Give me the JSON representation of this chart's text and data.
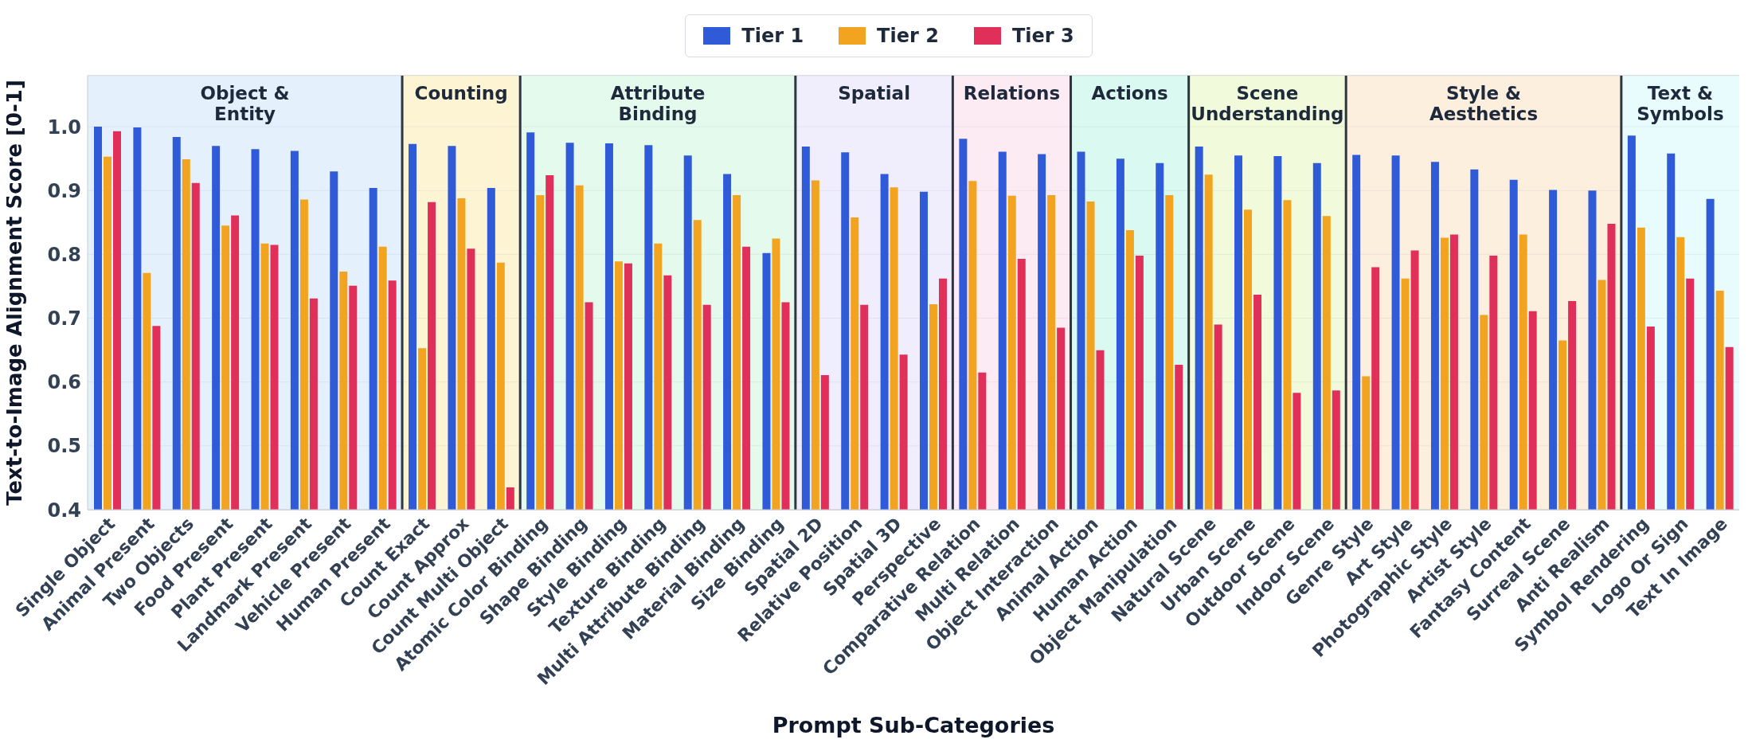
{
  "chart_data": {
    "type": "bar",
    "xlabel": "Prompt Sub-Categories",
    "ylabel": "Text-to-Image Alignment Score [0-1]",
    "categories": [
      "Single Object",
      "Animal Present",
      "Two Objects",
      "Food Present",
      "Plant Present",
      "Landmark Present",
      "Vehicle Present",
      "Human Present",
      "Count Exact",
      "Count Approx",
      "Count Multi Object",
      "Atomic Color Binding",
      "Shape Binding",
      "Style Binding",
      "Texture Binding",
      "Multi Attribute Binding",
      "Material Binding",
      "Size Binding",
      "Spatial 2D",
      "Relative Position",
      "Spatial 3D",
      "Perspective",
      "Comparative Relation",
      "Multi Relation",
      "Object Interaction",
      "Animal Action",
      "Human Action",
      "Object Manipulation",
      "Natural Scene",
      "Urban Scene",
      "Outdoor Scene",
      "Indoor Scene",
      "Genre Style",
      "Art Style",
      "Photographic Style",
      "Artist Style",
      "Fantasy Content",
      "Surreal Scene",
      "Anti Realism",
      "Symbol Rendering",
      "Logo Or Sign",
      "Text In Image"
    ],
    "series": [
      {
        "name": "Tier 1",
        "color": "#2f5bd9",
        "values": [
          1.0,
          0.999,
          0.984,
          0.97,
          0.965,
          0.962,
          0.93,
          0.904,
          0.973,
          0.97,
          0.904,
          0.991,
          0.975,
          0.974,
          0.971,
          0.955,
          0.926,
          0.802,
          0.969,
          0.96,
          0.926,
          0.898,
          0.981,
          0.961,
          0.957,
          0.961,
          0.95,
          0.943,
          0.969,
          0.955,
          0.954,
          0.943,
          0.956,
          0.955,
          0.945,
          0.933,
          0.917,
          0.901,
          0.9,
          0.986,
          0.958,
          0.887
        ]
      },
      {
        "name": "Tier 2",
        "color": "#f2a31f",
        "values": [
          0.953,
          0.771,
          0.949,
          0.845,
          0.817,
          0.886,
          0.773,
          0.812,
          0.653,
          0.888,
          0.787,
          0.893,
          0.908,
          0.789,
          0.817,
          0.854,
          0.893,
          0.825,
          0.916,
          0.858,
          0.905,
          0.722,
          0.915,
          0.892,
          0.893,
          0.883,
          0.838,
          0.893,
          0.925,
          0.87,
          0.885,
          0.86,
          0.609,
          0.762,
          0.826,
          0.705,
          0.831,
          0.665,
          0.76,
          0.842,
          0.827,
          0.743
        ]
      },
      {
        "name": "Tier 3",
        "color": "#e0305a",
        "values": [
          0.993,
          0.688,
          0.912,
          0.861,
          0.815,
          0.731,
          0.751,
          0.759,
          0.882,
          0.809,
          0.435,
          0.924,
          0.725,
          0.786,
          0.767,
          0.721,
          0.812,
          0.725,
          0.611,
          0.721,
          0.643,
          0.762,
          0.615,
          0.793,
          0.685,
          0.65,
          0.798,
          0.627,
          0.69,
          0.737,
          0.583,
          0.587,
          0.78,
          0.806,
          0.831,
          0.798,
          0.711,
          0.727,
          0.848,
          0.687,
          0.762,
          0.655
        ]
      }
    ],
    "ylim": [
      0.4,
      1.08
    ],
    "yticks": [
      0.4,
      0.5,
      0.6,
      0.7,
      0.8,
      0.9,
      {
        "value": 1,
        "label": "1.0"
      }
    ],
    "bands": [
      {
        "axis": "x",
        "from": "Single Object",
        "to": "Human Present",
        "label": "Object & Entity",
        "color": "#dfecfd"
      },
      {
        "axis": "x",
        "from": "Count Exact",
        "to": "Count Multi Object",
        "label": "Counting",
        "color": "#fdf1c8"
      },
      {
        "axis": "x",
        "from": "Atomic Color Binding",
        "to": "Size Binding",
        "label": "Attribute Binding",
        "color": "#ddf9e8"
      },
      {
        "axis": "x",
        "from": "Spatial 2D",
        "to": "Perspective",
        "label": "Spatial",
        "color": "#ece9fd"
      },
      {
        "axis": "x",
        "from": "Comparative Relation",
        "to": "Object Interaction",
        "label": "Relations",
        "color": "#fde6f1"
      },
      {
        "axis": "x",
        "from": "Animal Action",
        "to": "Object Manipulation",
        "label": "Actions",
        "color": "#cff8ee"
      },
      {
        "axis": "x",
        "from": "Natural Scene",
        "to": "Indoor Scene",
        "label": "Scene Understanding",
        "color": "#edfad2"
      },
      {
        "axis": "x",
        "from": "Genre Style",
        "to": "Anti Realism",
        "label": "Style & Aesthetics",
        "color": "#fdebd6"
      },
      {
        "axis": "x",
        "from": "Symbol Rendering",
        "to": "Text In Image",
        "label": "Text & Symbols",
        "color": "#e2fbfd"
      }
    ],
    "grid": "y",
    "legend": "top"
  }
}
